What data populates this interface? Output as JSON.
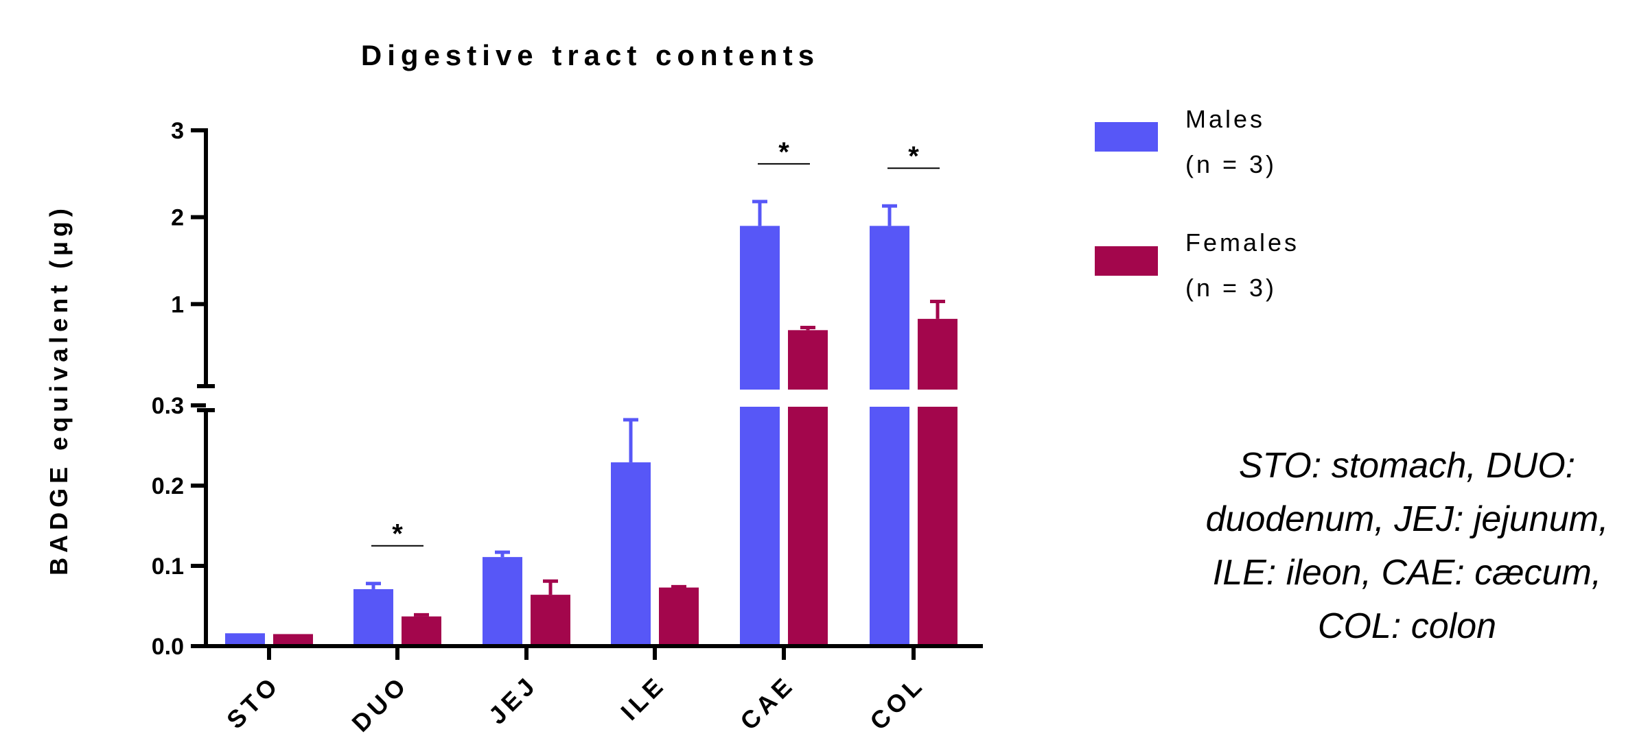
{
  "chart_data": {
    "type": "bar",
    "title": "Digestive tract contents",
    "ylabel": "BADGE equivalent (µg)",
    "xlabel": "",
    "categories": [
      "STO",
      "DUO",
      "JEJ",
      "ILE",
      "CAE",
      "COL"
    ],
    "series": [
      {
        "name": "Males",
        "legend_sub": "(n = 3)",
        "color": "#5757F7",
        "values": [
          0.016,
          0.071,
          0.111,
          0.229,
          1.9,
          1.9
        ],
        "errors": [
          0.0,
          0.007,
          0.006,
          0.053,
          0.28,
          0.23
        ]
      },
      {
        "name": "Females",
        "legend_sub": "(n = 3)",
        "color": "#A3064C",
        "values": [
          0.015,
          0.037,
          0.064,
          0.073,
          0.7,
          0.83
        ],
        "errors": [
          0.0,
          0.002,
          0.017,
          0.001,
          0.03,
          0.2
        ]
      }
    ],
    "axis_break": {
      "lower_range": [
        0,
        0.3
      ],
      "upper_range": [
        0.3,
        3
      ],
      "lower_ticks": [
        "0.0",
        "0.1",
        "0.2",
        "0.3"
      ],
      "upper_ticks": [
        "1",
        "2",
        "3"
      ]
    },
    "significance": [
      {
        "category": "DUO",
        "label": "*"
      },
      {
        "category": "CAE",
        "label": "*"
      },
      {
        "category": "COL",
        "label": "*"
      }
    ],
    "legend_position": "top-right",
    "grid": false
  },
  "footnote": "STO: stomach, DUO: duodenum, JEJ: jejunum, ILE: ileon, CAE: cæcum, COL: colon"
}
